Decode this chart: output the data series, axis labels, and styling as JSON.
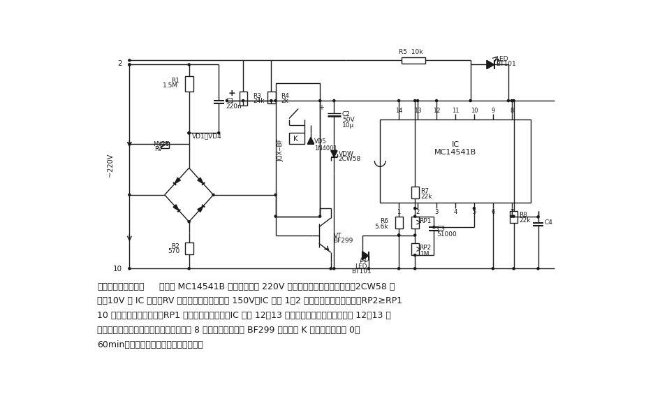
{
  "bg_color": "#ffffff",
  "line_color": "#1a1a1a",
  "text_color": "#1a1a1a",
  "desc_lines": [
    "电子时间继电器电路   电路以 MC14541B 为主，由交流 220V 经阵容降压桥式整流、滤波、2CW58 稳",
    "压戕10V 为 IC 供电。RV 为压敏电阱，标称电压 150V。IC 的脚 1、2 外接元件决定振荡频率。RP2≥RP1",
    "10 倍时振荡周期较稳定。RP1 用来调节振荡频率。IC 的脚 12、13 为定时程控端，定时长短由脚 12、13 的",
    "电位和频率决定。当计数到设定値时，脚 8 输出高电平，驱动 BF299 使继电器 K 动作。定时范围 0～",
    "60min。此电路适用于工业自动化控制。"
  ]
}
